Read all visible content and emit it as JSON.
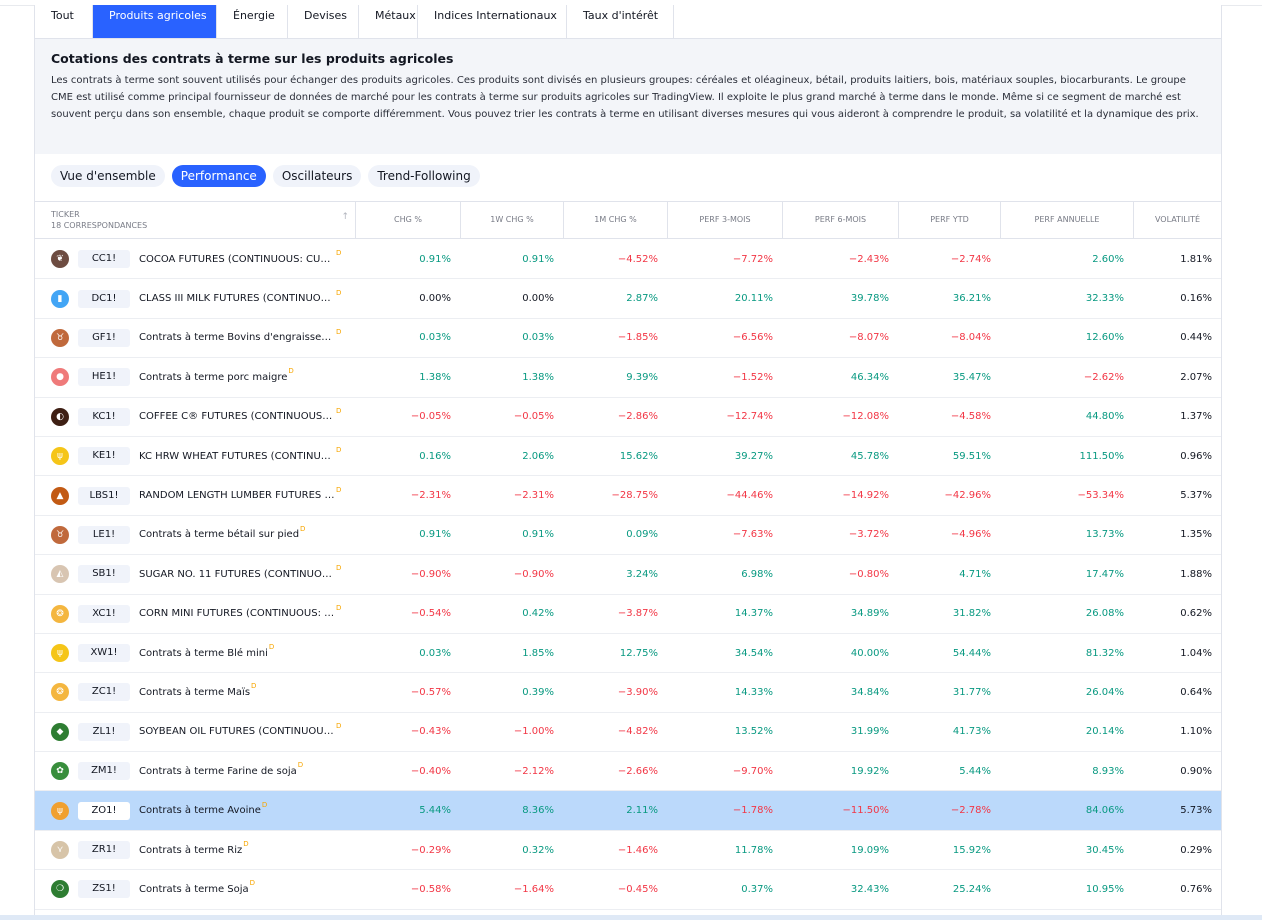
{
  "tabs": [
    "Tout",
    "Produits agricoles",
    "Énergie",
    "Devises",
    "Métaux",
    "Indices Internationaux",
    "Taux d'intérêt"
  ],
  "active_tab": 1,
  "section": {
    "title": "Cotations des contrats à terme sur les produits agricoles",
    "description": "Les contrats à terme sont souvent utilisés pour échanger des produits agricoles. Ces produits sont divisés en plusieurs groupes: céréales et oléagineux, bétail, produits laitiers, bois, matériaux souples, biocarburants. Le groupe CME est utilisé comme principal fournisseur de données de marché pour les contrats à terme sur produits agricoles sur TradingView. Il exploite le plus grand marché à terme dans le monde. Même si ce segment de marché est souvent perçu dans son ensemble, chaque produit se comporte différemment. Vous pouvez trier les contrats à terme en utilisant diverses mesures qui vous aideront à comprendre le produit, sa volatilité et la dynamique des prix."
  },
  "view_pills": [
    "Vue d'ensemble",
    "Performance",
    "Oscillateurs",
    "Trend-Following"
  ],
  "active_pill": 1,
  "table": {
    "ticker_header": "TICKER",
    "match_count": "18 CORRESPONDANCES",
    "columns": [
      "CHG %",
      "1W CHG %",
      "1M CHG %",
      "PERF 3-MOIS",
      "PERF 6-MOIS",
      "PERF YTD",
      "PERF ANNUELLE",
      "VOLATILITÉ"
    ],
    "delay_marker": "D",
    "rows": [
      {
        "ticker": "CC1!",
        "name": "COCOA FUTURES (CONTINUOUS: CURR…",
        "icon": "cocoa-icon",
        "color": "#6d4c41",
        "values": [
          "0.91%",
          "0.91%",
          "−4.52%",
          "−7.72%",
          "−2.43%",
          "−2.74%",
          "2.60%",
          "1.81%"
        ]
      },
      {
        "ticker": "DC1!",
        "name": "CLASS III MILK FUTURES (CONTINUOUS…",
        "icon": "milk-icon",
        "color": "#42a5f5",
        "values": [
          "0.00%",
          "0.00%",
          "2.87%",
          "20.11%",
          "39.78%",
          "36.21%",
          "32.33%",
          "0.16%"
        ]
      },
      {
        "ticker": "GF1!",
        "name": "Contrats à terme Bovins d'engraisseme…",
        "icon": "cattle-icon",
        "color": "#c0693c",
        "values": [
          "0.03%",
          "0.03%",
          "−1.85%",
          "−6.56%",
          "−8.07%",
          "−8.04%",
          "12.60%",
          "0.44%"
        ]
      },
      {
        "ticker": "HE1!",
        "name": "Contrats à terme porc maigre",
        "icon": "hog-icon",
        "color": "#ef7a7a",
        "values": [
          "1.38%",
          "1.38%",
          "9.39%",
          "−1.52%",
          "46.34%",
          "35.47%",
          "−2.62%",
          "2.07%"
        ]
      },
      {
        "ticker": "KC1!",
        "name": "COFFEE C® FUTURES (CONTINUOUS: C…",
        "icon": "coffee-icon",
        "color": "#3e1f14",
        "values": [
          "−0.05%",
          "−0.05%",
          "−2.86%",
          "−12.74%",
          "−12.08%",
          "−4.58%",
          "44.80%",
          "1.37%"
        ]
      },
      {
        "ticker": "KE1!",
        "name": "KC HRW WHEAT FUTURES (CONTINUOU…",
        "icon": "wheat-icon",
        "color": "#f5c518",
        "values": [
          "0.16%",
          "2.06%",
          "15.62%",
          "39.27%",
          "45.78%",
          "59.51%",
          "111.50%",
          "0.96%"
        ]
      },
      {
        "ticker": "LBS1!",
        "name": "RANDOM LENGTH LUMBER FUTURES (C…",
        "icon": "lumber-icon",
        "color": "#c25a14",
        "values": [
          "−2.31%",
          "−2.31%",
          "−28.75%",
          "−44.46%",
          "−14.92%",
          "−42.96%",
          "−53.34%",
          "5.37%"
        ]
      },
      {
        "ticker": "LE1!",
        "name": "Contrats à terme bétail sur pied",
        "icon": "cattle-icon",
        "color": "#c0693c",
        "values": [
          "0.91%",
          "0.91%",
          "0.09%",
          "−7.63%",
          "−3.72%",
          "−4.96%",
          "13.73%",
          "1.35%"
        ]
      },
      {
        "ticker": "SB1!",
        "name": "SUGAR NO. 11 FUTURES (CONTINUOUS…",
        "icon": "sugar-icon",
        "color": "#d8c5b2",
        "values": [
          "−0.90%",
          "−0.90%",
          "3.24%",
          "6.98%",
          "−0.80%",
          "4.71%",
          "17.47%",
          "1.88%"
        ]
      },
      {
        "ticker": "XC1!",
        "name": "CORN MINI FUTURES (CONTINUOUS: C…",
        "icon": "corn-icon",
        "color": "#f4b63f",
        "values": [
          "−0.54%",
          "0.42%",
          "−3.87%",
          "14.37%",
          "34.89%",
          "31.82%",
          "26.08%",
          "0.62%"
        ]
      },
      {
        "ticker": "XW1!",
        "name": "Contrats à terme Blé mini",
        "icon": "wheat-icon",
        "color": "#f5c518",
        "values": [
          "0.03%",
          "1.85%",
          "12.75%",
          "34.54%",
          "40.00%",
          "54.44%",
          "81.32%",
          "1.04%"
        ]
      },
      {
        "ticker": "ZC1!",
        "name": "Contrats à terme Maïs",
        "icon": "corn-icon",
        "color": "#f4b63f",
        "values": [
          "−0.57%",
          "0.39%",
          "−3.90%",
          "14.33%",
          "34.84%",
          "31.77%",
          "26.04%",
          "0.64%"
        ]
      },
      {
        "ticker": "ZL1!",
        "name": "SOYBEAN OIL FUTURES (CONTINUOUS: …",
        "icon": "oil-drop-icon",
        "color": "#2e7d32",
        "values": [
          "−0.43%",
          "−1.00%",
          "−4.82%",
          "13.52%",
          "31.99%",
          "41.73%",
          "20.14%",
          "1.10%"
        ]
      },
      {
        "ticker": "ZM1!",
        "name": "Contrats à terme Farine de soja",
        "icon": "soymeal-icon",
        "color": "#388e3c",
        "values": [
          "−0.40%",
          "−2.12%",
          "−2.66%",
          "−9.70%",
          "19.92%",
          "5.44%",
          "8.93%",
          "0.90%"
        ]
      },
      {
        "ticker": "ZO1!",
        "name": "Contrats à terme Avoine",
        "icon": "oats-icon",
        "color": "#f0a030",
        "selected": true,
        "values": [
          "5.44%",
          "8.36%",
          "2.11%",
          "−1.78%",
          "−11.50%",
          "−2.78%",
          "84.06%",
          "5.73%"
        ]
      },
      {
        "ticker": "ZR1!",
        "name": "Contrats à terme Riz",
        "icon": "rice-icon",
        "color": "#d7c4a8",
        "values": [
          "−0.29%",
          "0.32%",
          "−1.46%",
          "11.78%",
          "19.09%",
          "15.92%",
          "30.45%",
          "0.29%"
        ]
      },
      {
        "ticker": "ZS1!",
        "name": "Contrats à terme Soja",
        "icon": "soybean-icon",
        "color": "#2e7d32",
        "values": [
          "−0.58%",
          "−1.64%",
          "−0.45%",
          "0.37%",
          "32.43%",
          "25.24%",
          "10.95%",
          "0.76%"
        ]
      }
    ]
  }
}
